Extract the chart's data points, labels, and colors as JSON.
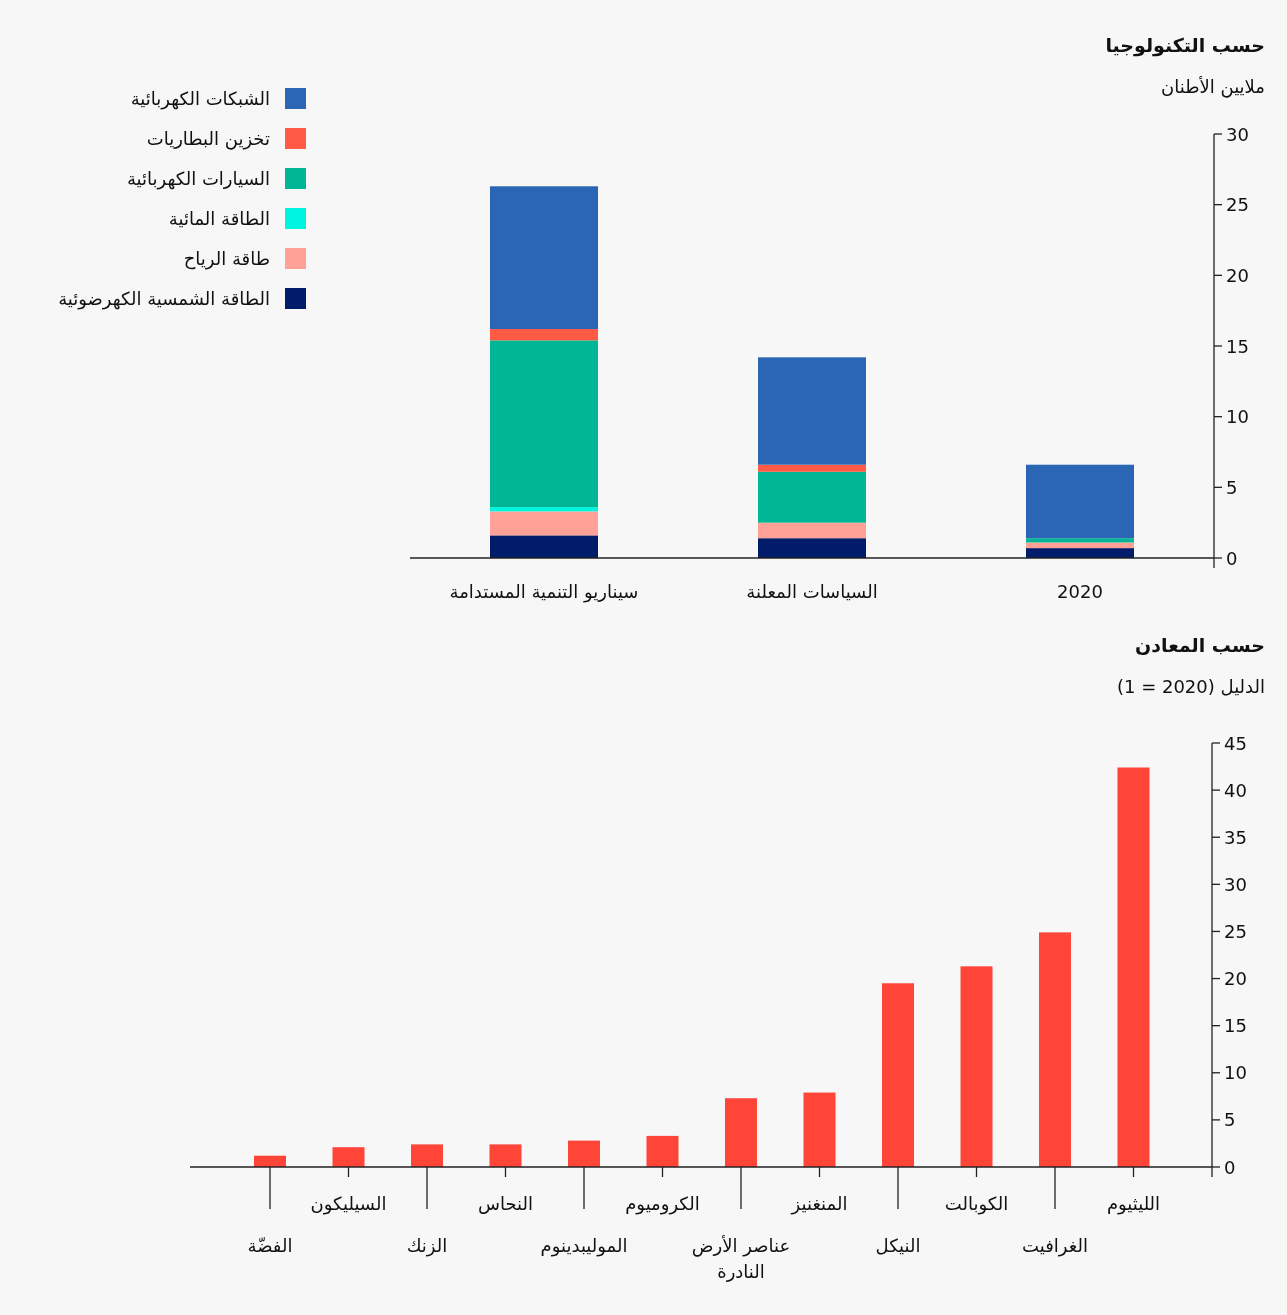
{
  "chart_data": [
    {
      "type": "bar",
      "title": "حسب التكنولوجيا",
      "ylabel": "ملايين الأطنان",
      "stacked": true,
      "legend": "left",
      "categories": [
        "سيناريو التنمية المستدامة",
        "السياسات المعلنة",
        "2020"
      ],
      "ylim": [
        0,
        30
      ],
      "yticks": [
        0,
        5,
        10,
        15,
        20,
        25,
        30
      ],
      "series": [
        {
          "name": "الطاقة الشمسية الكهرضوئية",
          "color": "#001c6b",
          "values": [
            1.6,
            1.4,
            0.7
          ]
        },
        {
          "name": "طاقة الرياح",
          "color": "#ffa197",
          "values": [
            1.7,
            1.1,
            0.4
          ]
        },
        {
          "name": "الطاقة المائية",
          "color": "#00f5e0",
          "values": [
            0.3,
            0,
            0
          ]
        },
        {
          "name": "السيارات الكهربائية",
          "color": "#00b695",
          "values": [
            11.8,
            3.6,
            0.3
          ]
        },
        {
          "name": "تخزين البطاريات",
          "color": "#ff5a45",
          "values": [
            0.8,
            0.5,
            0
          ]
        },
        {
          "name": "الشبكات الكهربائية",
          "color": "#2a66b4",
          "values": [
            10.1,
            7.6,
            5.2
          ]
        }
      ]
    },
    {
      "type": "bar",
      "title": "حسب المعادن",
      "ylabel": "الدليل (2020 = 1)",
      "color": "#ff4438",
      "categories": [
        "الفضّة",
        "السيليكون",
        "الزنك",
        "النحاس",
        "الموليبدينوم",
        "الكروميوم",
        "عناصر الأرض النادرة",
        "المنغنيز",
        "النيكل",
        "الكوبالت",
        "الغرافيت",
        "الليثيوم"
      ],
      "values": [
        1.2,
        2.1,
        2.4,
        2.4,
        2.8,
        3.3,
        7.3,
        7.9,
        19.5,
        21.3,
        24.9,
        42.4
      ],
      "ylim": [
        0,
        45
      ],
      "yticks": [
        0,
        5,
        10,
        15,
        20,
        25,
        30,
        35,
        40,
        45
      ]
    }
  ]
}
